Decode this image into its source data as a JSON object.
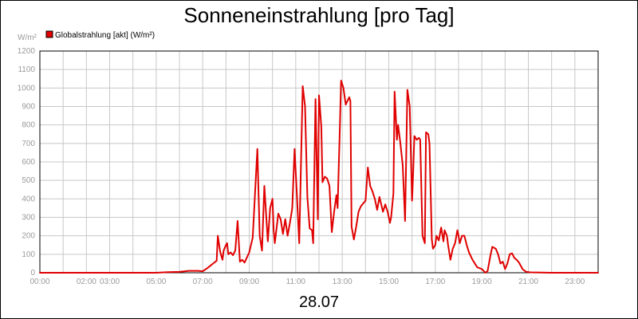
{
  "chart_data": {
    "type": "line",
    "title": "Sonneneinstrahlung [pro Tag]",
    "date_label": "28.07",
    "unit": "W/m²",
    "legend": {
      "placement": "top-left",
      "entries": [
        {
          "label": "Globalstrahlung [akt] (W/m²)",
          "color": "#e00000"
        }
      ]
    },
    "x_axis": {
      "range": [
        0,
        24
      ],
      "tick_positions": [
        0,
        2,
        3,
        5,
        7,
        9,
        11,
        13,
        15,
        17,
        19,
        21,
        23
      ],
      "tick_labels": [
        "00:00",
        "02:00",
        "03:00",
        "05:00",
        "07:00",
        "09:00",
        "11:00",
        "13:00",
        "15:00",
        "17:00",
        "19:00",
        "21:00",
        "23:00"
      ]
    },
    "y_axis": {
      "range": [
        0,
        1200
      ],
      "ticks": [
        0,
        100,
        200,
        300,
        400,
        500,
        600,
        700,
        800,
        900,
        1000,
        1100,
        1200
      ]
    },
    "grid": true,
    "colors": {
      "series": "#e00000",
      "grid": "#c8c8c8",
      "axis": "#000000"
    },
    "series": [
      {
        "name": "Globalstrahlung [akt] (W/m²)",
        "points": [
          [
            0.0,
            0
          ],
          [
            5.0,
            0
          ],
          [
            5.5,
            3
          ],
          [
            6.0,
            5
          ],
          [
            6.4,
            10
          ],
          [
            6.8,
            10
          ],
          [
            7.0,
            8
          ],
          [
            7.2,
            25
          ],
          [
            7.5,
            55
          ],
          [
            7.6,
            65
          ],
          [
            7.65,
            200
          ],
          [
            7.75,
            115
          ],
          [
            7.85,
            70
          ],
          [
            7.9,
            120
          ],
          [
            8.0,
            150
          ],
          [
            8.05,
            160
          ],
          [
            8.1,
            100
          ],
          [
            8.2,
            110
          ],
          [
            8.3,
            95
          ],
          [
            8.4,
            120
          ],
          [
            8.5,
            280
          ],
          [
            8.55,
            170
          ],
          [
            8.6,
            60
          ],
          [
            8.7,
            70
          ],
          [
            8.8,
            55
          ],
          [
            9.0,
            110
          ],
          [
            9.15,
            190
          ],
          [
            9.35,
            670
          ],
          [
            9.45,
            200
          ],
          [
            9.55,
            120
          ],
          [
            9.65,
            470
          ],
          [
            9.8,
            170
          ],
          [
            9.9,
            350
          ],
          [
            10.0,
            400
          ],
          [
            10.05,
            230
          ],
          [
            10.1,
            160
          ],
          [
            10.25,
            320
          ],
          [
            10.35,
            290
          ],
          [
            10.45,
            210
          ],
          [
            10.55,
            290
          ],
          [
            10.65,
            200
          ],
          [
            10.75,
            270
          ],
          [
            10.85,
            350
          ],
          [
            10.95,
            670
          ],
          [
            11.05,
            420
          ],
          [
            11.15,
            160
          ],
          [
            11.3,
            1010
          ],
          [
            11.4,
            900
          ],
          [
            11.5,
            410
          ],
          [
            11.6,
            240
          ],
          [
            11.7,
            230
          ],
          [
            11.75,
            160
          ],
          [
            11.85,
            940
          ],
          [
            11.95,
            290
          ],
          [
            12.0,
            960
          ],
          [
            12.1,
            790
          ],
          [
            12.15,
            490
          ],
          [
            12.25,
            520
          ],
          [
            12.35,
            510
          ],
          [
            12.45,
            470
          ],
          [
            12.55,
            220
          ],
          [
            12.65,
            330
          ],
          [
            12.75,
            420
          ],
          [
            12.8,
            350
          ],
          [
            12.9,
            800
          ],
          [
            12.95,
            1040
          ],
          [
            13.05,
            1000
          ],
          [
            13.15,
            910
          ],
          [
            13.3,
            950
          ],
          [
            13.35,
            930
          ],
          [
            13.4,
            250
          ],
          [
            13.5,
            180
          ],
          [
            13.6,
            250
          ],
          [
            13.7,
            330
          ],
          [
            13.8,
            360
          ],
          [
            14.0,
            390
          ],
          [
            14.1,
            570
          ],
          [
            14.2,
            470
          ],
          [
            14.3,
            440
          ],
          [
            14.4,
            400
          ],
          [
            14.5,
            340
          ],
          [
            14.6,
            410
          ],
          [
            14.75,
            330
          ],
          [
            14.85,
            370
          ],
          [
            14.95,
            330
          ],
          [
            15.05,
            270
          ],
          [
            15.1,
            300
          ],
          [
            15.2,
            430
          ],
          [
            15.25,
            980
          ],
          [
            15.35,
            720
          ],
          [
            15.4,
            800
          ],
          [
            15.5,
            700
          ],
          [
            15.6,
            580
          ],
          [
            15.7,
            280
          ],
          [
            15.8,
            990
          ],
          [
            15.9,
            900
          ],
          [
            16.0,
            390
          ],
          [
            16.05,
            550
          ],
          [
            16.1,
            740
          ],
          [
            16.2,
            720
          ],
          [
            16.3,
            730
          ],
          [
            16.35,
            720
          ],
          [
            16.45,
            200
          ],
          [
            16.55,
            160
          ],
          [
            16.6,
            760
          ],
          [
            16.7,
            750
          ],
          [
            16.75,
            700
          ],
          [
            16.85,
            180
          ],
          [
            16.9,
            130
          ],
          [
            17.0,
            150
          ],
          [
            17.05,
            200
          ],
          [
            17.15,
            175
          ],
          [
            17.25,
            245
          ],
          [
            17.35,
            170
          ],
          [
            17.4,
            230
          ],
          [
            17.5,
            200
          ],
          [
            17.55,
            150
          ],
          [
            17.65,
            70
          ],
          [
            17.75,
            130
          ],
          [
            17.85,
            160
          ],
          [
            17.95,
            230
          ],
          [
            18.0,
            200
          ],
          [
            18.05,
            160
          ],
          [
            18.15,
            200
          ],
          [
            18.25,
            200
          ],
          [
            18.35,
            150
          ],
          [
            18.45,
            110
          ],
          [
            18.6,
            70
          ],
          [
            18.8,
            30
          ],
          [
            19.0,
            20
          ],
          [
            19.15,
            0
          ],
          [
            19.25,
            10
          ],
          [
            19.35,
            80
          ],
          [
            19.45,
            140
          ],
          [
            19.6,
            130
          ],
          [
            19.7,
            100
          ],
          [
            19.8,
            50
          ],
          [
            19.9,
            60
          ],
          [
            20.0,
            20
          ],
          [
            20.1,
            50
          ],
          [
            20.2,
            100
          ],
          [
            20.3,
            105
          ],
          [
            20.4,
            80
          ],
          [
            20.5,
            70
          ],
          [
            20.6,
            55
          ],
          [
            20.75,
            20
          ],
          [
            20.9,
            5
          ],
          [
            21.1,
            2
          ],
          [
            22.0,
            0
          ],
          [
            24.0,
            0
          ]
        ]
      }
    ]
  }
}
